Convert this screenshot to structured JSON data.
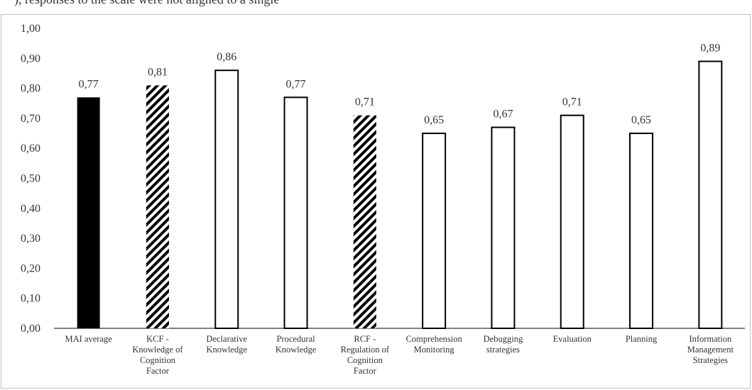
{
  "caption_fragment": "), responses to the scale were not aligned to a single",
  "colors": {
    "solid": "#000000",
    "outline": "#000000",
    "fill_empty": "#ffffff",
    "axis": "#000000"
  },
  "chart_data": {
    "type": "bar",
    "title": "",
    "xlabel": "",
    "ylabel": "",
    "ylim": [
      0,
      1
    ],
    "y_ticks": [
      "0,00",
      "0,10",
      "0,20",
      "0,30",
      "0,40",
      "0,50",
      "0,60",
      "0,70",
      "0,80",
      "0,90",
      "1,00"
    ],
    "grid": false,
    "legend": "none",
    "categories": [
      "MAI average",
      "KCF - Knowledge of Cognition Factor",
      "Declarative Knowledge",
      "Procedural Knowledge",
      "RCF - Regulation of Cognition Factor",
      "Comprehension Monitoring",
      "Debugging strategies",
      "Evaluation",
      "Planning",
      "Information Management Strategies"
    ],
    "category_lines": [
      [
        "MAI average"
      ],
      [
        "KCF -",
        "Knowledge of",
        "Cognition",
        "Factor"
      ],
      [
        "Declarative",
        "Knowledge"
      ],
      [
        "Procedural",
        "Knowledge"
      ],
      [
        "RCF -",
        "Regulation of",
        "Cognition",
        "Factor"
      ],
      [
        "Comprehension",
        "Monitoring"
      ],
      [
        "Debugging",
        "strategies"
      ],
      [
        "Evaluation"
      ],
      [
        "Planning"
      ],
      [
        "Information",
        "Management",
        "Strategies"
      ]
    ],
    "values": [
      0.77,
      0.81,
      0.86,
      0.77,
      0.71,
      0.65,
      0.67,
      0.71,
      0.65,
      0.89
    ],
    "value_labels": [
      "0,77",
      "0,81",
      "0,86",
      "0,77",
      "0,71",
      "0,65",
      "0,67",
      "0,71",
      "0,65",
      "0,89"
    ],
    "bar_styles": [
      "solid",
      "hatched",
      "outline",
      "outline",
      "hatched",
      "outline",
      "outline",
      "outline",
      "outline",
      "outline"
    ]
  }
}
